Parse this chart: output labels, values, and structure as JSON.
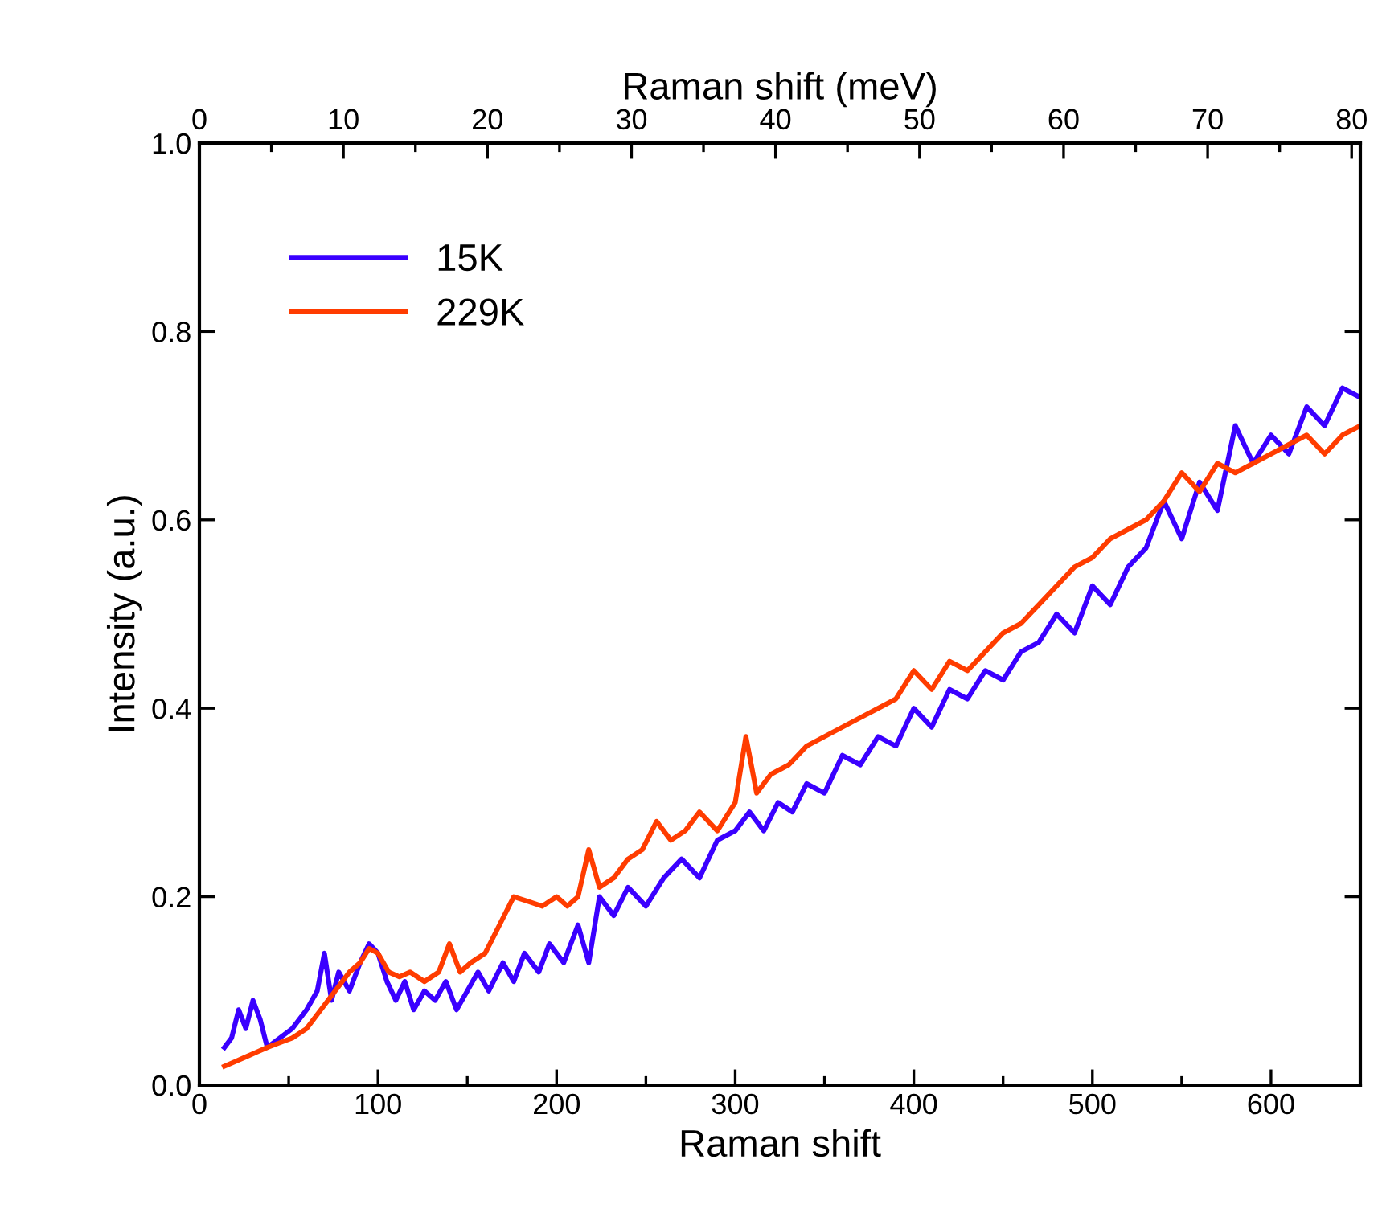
{
  "chart_data": {
    "type": "line",
    "xlabel": "Raman shift",
    "ylabel": "Intensity (a.u.)",
    "x2label": "Raman shift (meV)",
    "xlim": [
      0,
      650
    ],
    "xticks": [
      0,
      100,
      200,
      300,
      400,
      500,
      600
    ],
    "ylim": [
      0,
      1.0
    ],
    "yticks": [
      {
        "value": 0,
        "label": "0.0"
      },
      0.2,
      0.4,
      0.6,
      0.8,
      {
        "value": 1.0,
        "label": "1.0"
      }
    ],
    "x2lim": [
      0,
      80.6
    ],
    "x2ticks": [
      0,
      10,
      20,
      30,
      40,
      50,
      60,
      70,
      80
    ],
    "legend": "top left",
    "grid": false,
    "marker": "none",
    "line_style": "solid",
    "series": [
      {
        "name": "15K",
        "color": "#3a00ff",
        "x": [
          14,
          18,
          22,
          26,
          30,
          34,
          38,
          45,
          52,
          60,
          66,
          70,
          74,
          78,
          84,
          90,
          95,
          100,
          105,
          110,
          115,
          120,
          126,
          132,
          138,
          144,
          150,
          156,
          162,
          170,
          176,
          182,
          190,
          196,
          204,
          212,
          218,
          224,
          232,
          240,
          250,
          260,
          270,
          280,
          290,
          300,
          308,
          316,
          324,
          332,
          340,
          350,
          360,
          370,
          380,
          390,
          400,
          410,
          420,
          430,
          440,
          450,
          460,
          470,
          480,
          490,
          500,
          510,
          520,
          530,
          540,
          550,
          560,
          570,
          580,
          590,
          600,
          610,
          620,
          630,
          640,
          650
        ],
        "values": [
          0.04,
          0.05,
          0.08,
          0.06,
          0.09,
          0.07,
          0.04,
          0.05,
          0.06,
          0.08,
          0.1,
          0.14,
          0.09,
          0.12,
          0.1,
          0.13,
          0.15,
          0.14,
          0.11,
          0.09,
          0.11,
          0.08,
          0.1,
          0.09,
          0.11,
          0.08,
          0.1,
          0.12,
          0.1,
          0.13,
          0.11,
          0.14,
          0.12,
          0.15,
          0.13,
          0.17,
          0.13,
          0.2,
          0.18,
          0.21,
          0.19,
          0.22,
          0.24,
          0.22,
          0.26,
          0.27,
          0.29,
          0.27,
          0.3,
          0.29,
          0.32,
          0.31,
          0.35,
          0.34,
          0.37,
          0.36,
          0.4,
          0.38,
          0.42,
          0.41,
          0.44,
          0.43,
          0.46,
          0.47,
          0.5,
          0.48,
          0.53,
          0.51,
          0.55,
          0.57,
          0.62,
          0.58,
          0.64,
          0.61,
          0.7,
          0.66,
          0.69,
          0.67,
          0.72,
          0.7,
          0.74,
          0.73
        ]
      },
      {
        "name": "229K",
        "color": "#ff3c00",
        "x": [
          14,
          20,
          26,
          32,
          38,
          45,
          52,
          60,
          68,
          76,
          84,
          90,
          95,
          100,
          106,
          112,
          118,
          126,
          134,
          140,
          146,
          152,
          160,
          168,
          176,
          184,
          192,
          200,
          206,
          212,
          218,
          224,
          232,
          240,
          248,
          256,
          264,
          272,
          280,
          290,
          300,
          306,
          312,
          320,
          330,
          340,
          350,
          360,
          370,
          380,
          390,
          400,
          410,
          420,
          430,
          440,
          450,
          460,
          470,
          480,
          490,
          500,
          510,
          520,
          530,
          540,
          550,
          560,
          570,
          580,
          590,
          600,
          610,
          620,
          630,
          640,
          650
        ],
        "values": [
          0.02,
          0.025,
          0.03,
          0.035,
          0.04,
          0.045,
          0.05,
          0.06,
          0.08,
          0.1,
          0.12,
          0.13,
          0.145,
          0.14,
          0.12,
          0.115,
          0.12,
          0.11,
          0.12,
          0.15,
          0.12,
          0.13,
          0.14,
          0.17,
          0.2,
          0.195,
          0.19,
          0.2,
          0.19,
          0.2,
          0.25,
          0.21,
          0.22,
          0.24,
          0.25,
          0.28,
          0.26,
          0.27,
          0.29,
          0.27,
          0.3,
          0.37,
          0.31,
          0.33,
          0.34,
          0.36,
          0.37,
          0.38,
          0.39,
          0.4,
          0.41,
          0.44,
          0.42,
          0.45,
          0.44,
          0.46,
          0.48,
          0.49,
          0.51,
          0.53,
          0.55,
          0.56,
          0.58,
          0.59,
          0.6,
          0.62,
          0.65,
          0.63,
          0.66,
          0.65,
          0.66,
          0.67,
          0.68,
          0.69,
          0.67,
          0.69,
          0.7
        ]
      }
    ]
  }
}
